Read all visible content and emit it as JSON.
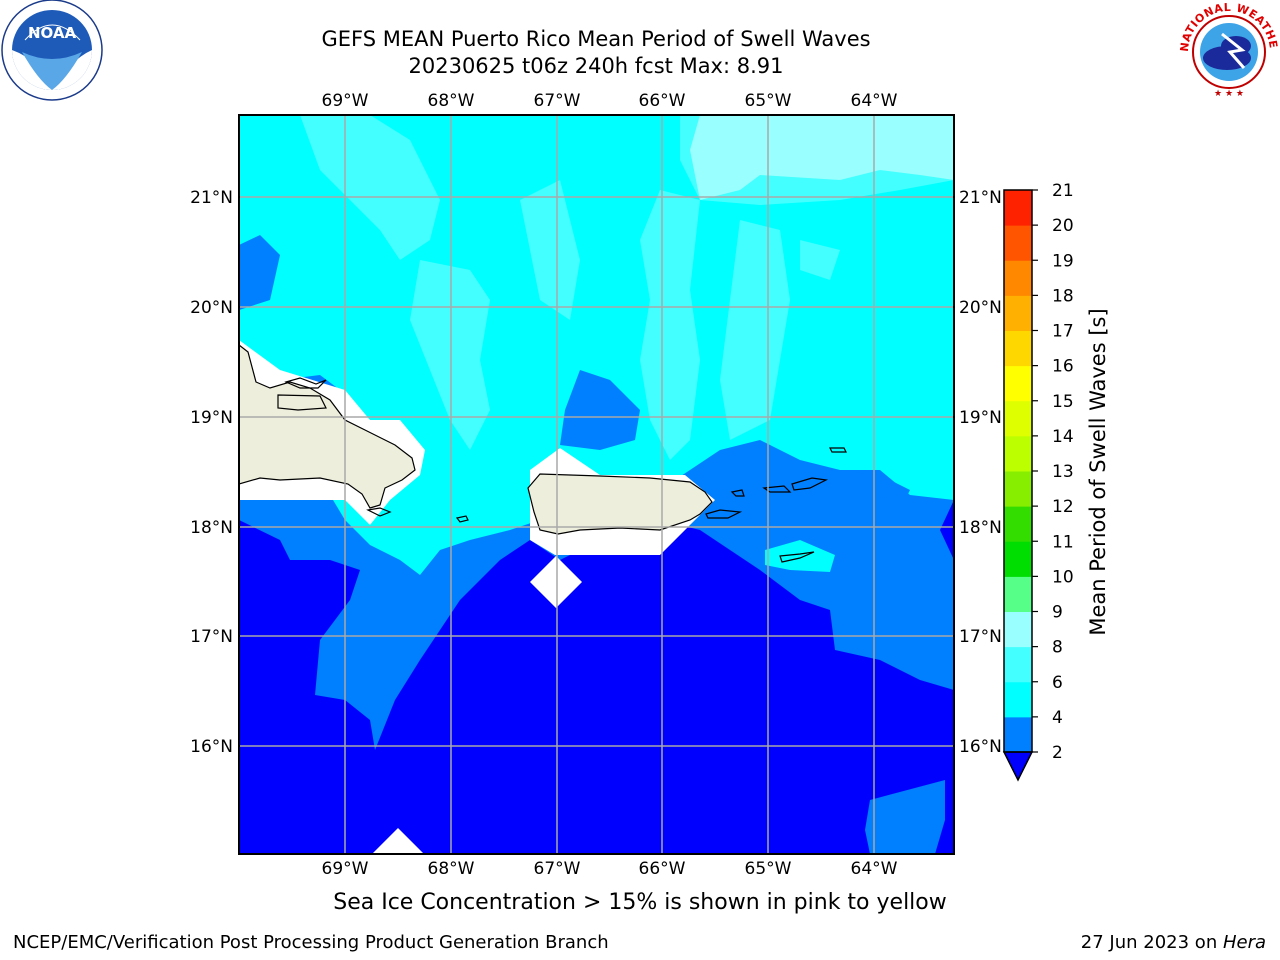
{
  "title_line1": "GEFS MEAN Puerto Rico Mean Period of Swell Waves",
  "title_line2": "20230625 t06z 240h fcst   Max: 8.91",
  "sea_ice_note": "Sea Ice Concentration > 15% is shown in pink to yellow",
  "footer_left": "NCEP/EMC/Verification Post Processing Product Generation Branch",
  "footer_right_prefix": "27 Jun 2023 on ",
  "footer_right_host": "Hera",
  "logos": {
    "left": {
      "icon": "noaa-logo-icon",
      "text": "NOAA"
    },
    "right": {
      "icon": "nws-logo-icon",
      "text": "NATIONAL WEATHER SERVICE"
    }
  },
  "map": {
    "lon_labels": [
      "69°W",
      "68°W",
      "67°W",
      "66°W",
      "65°W",
      "64°W"
    ],
    "lat_labels": [
      "21°N",
      "20°N",
      "19°N",
      "18°N",
      "17°N",
      "16°N"
    ],
    "colors": {
      "land": "#eeeedd",
      "ocean_deep": "#0000ff",
      "ocean_mid": "#007fff",
      "ocean_cyan": "#00ffff",
      "ocean_light": "#44ffff",
      "ocean_pale": "#99ffff",
      "missing": "#ffffff",
      "grid": "#a9a9a9"
    }
  },
  "colorbar": {
    "title": "Mean Period of Swell Waves [s]",
    "levels": [
      "2",
      "4",
      "6",
      "8",
      "9",
      "10",
      "11",
      "12",
      "13",
      "14",
      "15",
      "16",
      "17",
      "18",
      "19",
      "20",
      "21"
    ],
    "colors": [
      "#007fff",
      "#00ffff",
      "#44ffff",
      "#99ffff",
      "#55ff88",
      "#00dd00",
      "#33dd00",
      "#88ee00",
      "#bbff00",
      "#ddff00",
      "#ffff00",
      "#ffd700",
      "#ffb000",
      "#ff8800",
      "#ff5500",
      "#ff2200"
    ],
    "extend_color": "#0000ff"
  }
}
